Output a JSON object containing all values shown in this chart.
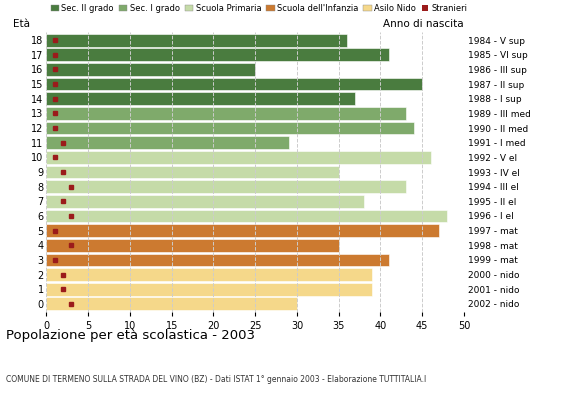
{
  "ages": [
    18,
    17,
    16,
    15,
    14,
    13,
    12,
    11,
    10,
    9,
    8,
    7,
    6,
    5,
    4,
    3,
    2,
    1,
    0
  ],
  "bar_values": [
    36,
    41,
    25,
    45,
    37,
    43,
    44,
    29,
    46,
    35,
    43,
    38,
    48,
    47,
    35,
    41,
    39,
    39,
    30
  ],
  "stranieri": [
    1,
    1,
    1,
    1,
    1,
    1,
    1,
    2,
    1,
    2,
    3,
    2,
    3,
    1,
    3,
    1,
    2,
    2,
    3
  ],
  "bar_colors": [
    "#4a7c3f",
    "#4a7c3f",
    "#4a7c3f",
    "#4a7c3f",
    "#4a7c3f",
    "#7faa6b",
    "#7faa6b",
    "#7faa6b",
    "#c5dba8",
    "#c5dba8",
    "#c5dba8",
    "#c5dba8",
    "#c5dba8",
    "#cc7a30",
    "#cc7a30",
    "#cc7a30",
    "#f5d88a",
    "#f5d88a",
    "#f5d88a"
  ],
  "right_labels": [
    "1984 - V sup",
    "1985 - VI sup",
    "1986 - III sup",
    "1987 - II sup",
    "1988 - I sup",
    "1989 - III med",
    "1990 - II med",
    "1991 - I med",
    "1992 - V el",
    "1993 - IV el",
    "1994 - III el",
    "1995 - II el",
    "1996 - I el",
    "1997 - mat",
    "1998 - mat",
    "1999 - mat",
    "2000 - nido",
    "2001 - nido",
    "2002 - nido"
  ],
  "legend_labels": [
    "Sec. II grado",
    "Sec. I grado",
    "Scuola Primaria",
    "Scuola dell'Infanzia",
    "Asilo Nido",
    "Stranieri"
  ],
  "legend_colors": [
    "#4a7c3f",
    "#7faa6b",
    "#c5dba8",
    "#cc7a30",
    "#f5d88a",
    "#aa1111"
  ],
  "ylabel": "Età",
  "anno_label": "Anno di nascita",
  "title": "Popolazione per età scolastica - 2003",
  "subtitle": "COMUNE DI TERMENO SULLA STRADA DEL VINO (BZ) - Dati ISTAT 1° gennaio 2003 - Elaborazione TUTTITALIA.I",
  "xlim": [
    0,
    50
  ],
  "xticks": [
    0,
    5,
    10,
    15,
    20,
    25,
    30,
    35,
    40,
    45,
    50
  ],
  "bg_color": "#ffffff",
  "grid_color": "#cccccc",
  "stranieri_color": "#9b1b1b",
  "bar_height": 0.88
}
